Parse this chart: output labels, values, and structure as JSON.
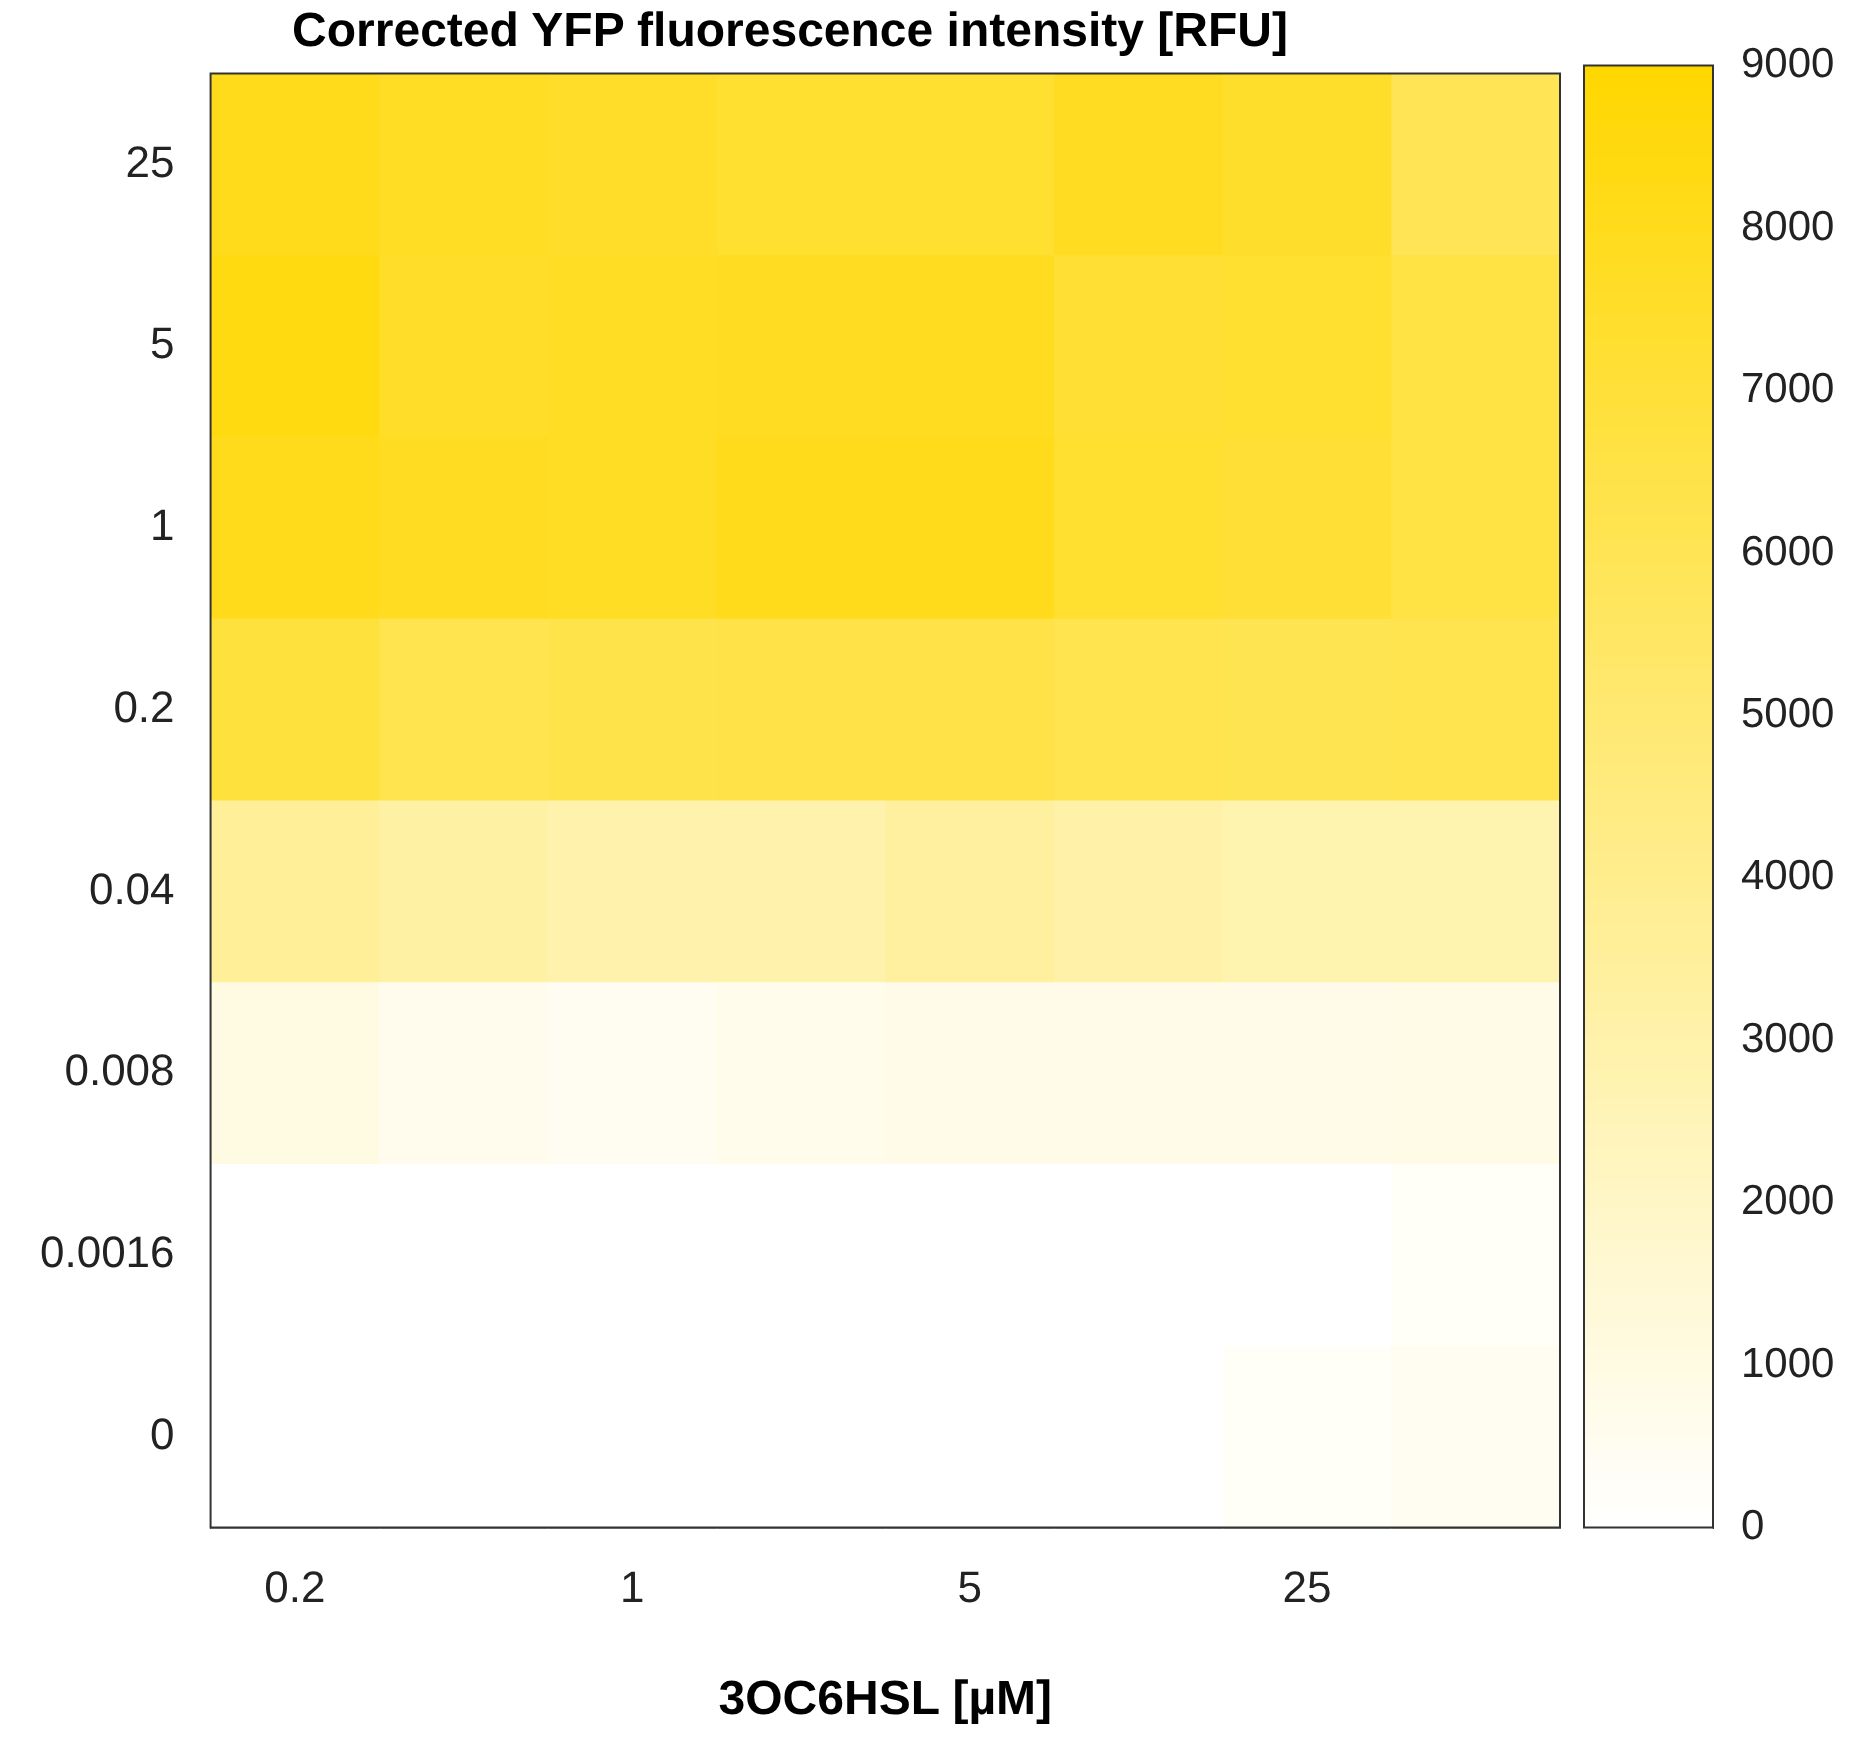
{
  "chart_data": {
    "type": "heatmap",
    "title": "Corrected YFP fluorescence intensity [RFU]",
    "xlabel": "3OC6HSL [µM]",
    "categories": [
      "0.2",
      null,
      "1",
      null,
      "5",
      null,
      "25",
      null
    ],
    "y_categories": [
      "25",
      "5",
      "1",
      "0.2",
      "0.04",
      "0.008",
      "0.0016",
      "0"
    ],
    "cells": [
      [
        8000,
        7700,
        7600,
        7300,
        7300,
        7800,
        7500,
        6000
      ],
      [
        8400,
        7600,
        7700,
        7800,
        7900,
        7200,
        7300,
        6600
      ],
      [
        8000,
        7800,
        7700,
        8000,
        8000,
        7300,
        7100,
        6600
      ],
      [
        6800,
        6200,
        6400,
        6500,
        6500,
        6200,
        6100,
        6200
      ],
      [
        3600,
        3200,
        2900,
        2900,
        3400,
        3100,
        2800,
        2800
      ],
      [
        1000,
        600,
        500,
        700,
        800,
        800,
        800,
        900
      ],
      [
        0,
        0,
        0,
        0,
        0,
        0,
        0,
        300
      ],
      [
        0,
        0,
        0,
        0,
        0,
        0,
        300,
        500
      ]
    ],
    "clim": [
      0,
      9000
    ],
    "cticks": [
      0,
      1000,
      2000,
      3000,
      4000,
      5000,
      6000,
      7000,
      8000,
      9000
    ]
  }
}
